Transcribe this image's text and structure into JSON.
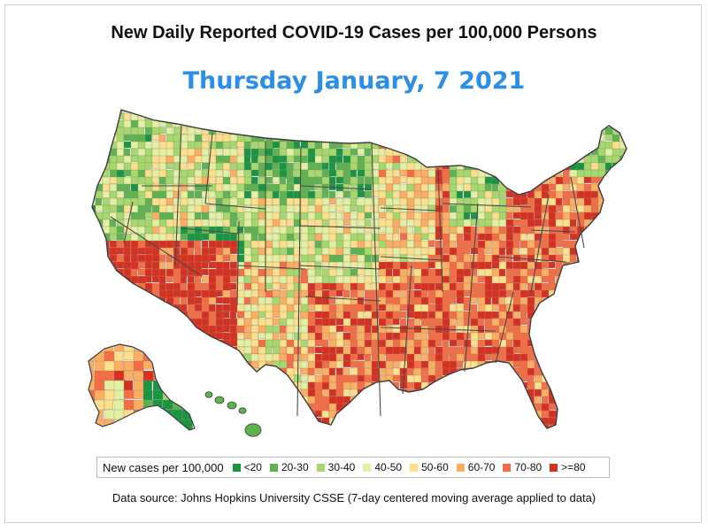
{
  "title": "New Daily Reported COVID-19 Cases per 100,000 Persons",
  "subtitle": "Thursday January, 7  2021",
  "subtitle_color": "#2b8ee8",
  "legend": {
    "title": "New cases per 100,000",
    "bins": [
      {
        "label": "<20",
        "color": "#1a9641"
      },
      {
        "label": "20-30",
        "color": "#5fb34f"
      },
      {
        "label": "30-40",
        "color": "#a6d96a"
      },
      {
        "label": "40-50",
        "color": "#e3f0a0"
      },
      {
        "label": "50-60",
        "color": "#fee08b"
      },
      {
        "label": "60-70",
        "color": "#fdae61"
      },
      {
        "label": "70-80",
        "color": "#f46d43"
      },
      {
        "label": ">=80",
        "color": "#d7301f"
      }
    ]
  },
  "source": "Data source: Johns Hopkins University CSSE (7-day centered moving average applied to data)"
}
